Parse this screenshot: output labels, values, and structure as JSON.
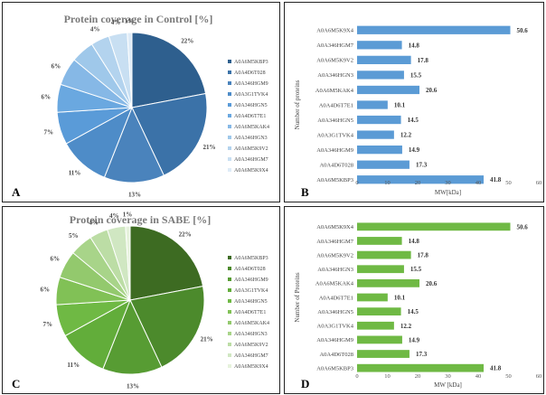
{
  "chart_data": [
    {
      "panel": "A",
      "type": "pie",
      "title": "Protein coverage in Control [%]",
      "categories": [
        "A0A6M5KBP3",
        "A0A4D6T028",
        "A0A346HGM9",
        "A0A3G1TVK4",
        "A0A346HGN5",
        "A0A4D6T7E1",
        "A0A6M5KAK4",
        "A0A346HGN3",
        "A0A6M5K9V2",
        "A0A346HGM7",
        "A0A6M5K9X4"
      ],
      "values": [
        22,
        21,
        13,
        11,
        7,
        6,
        6,
        5,
        4,
        4,
        1
      ],
      "slice_labels": [
        "22%",
        "21%",
        "13%",
        "11%",
        "7%",
        "6%",
        "6%",
        "",
        "4%",
        "4%",
        "1%"
      ],
      "colors": [
        "#2e5f8e",
        "#3b72a8",
        "#4a83bc",
        "#4e8cc8",
        "#5a9bd8",
        "#6aa8e0",
        "#86b8e6",
        "#9fc8ea",
        "#b3d3ee",
        "#c8dff2",
        "#deebf7"
      ],
      "legend": "right"
    },
    {
      "panel": "B",
      "type": "bar",
      "orientation": "horizontal",
      "categories": [
        "A0A6M5K9X4",
        "A0A346HGM7",
        "A0A6M5K9V2",
        "A0A346HGN3",
        "A0A6M5KAK4",
        "A0A4D6T7E1",
        "A0A346HGN5",
        "A0A3G1TVK4",
        "A0A346HGM9",
        "A0A4D6T028",
        "A0A6M5KBP3"
      ],
      "values": [
        50.6,
        14.8,
        17.8,
        15.5,
        20.6,
        10.1,
        14.5,
        12.2,
        14.9,
        17.3,
        41.8
      ],
      "xlabel": "MW[kDa]",
      "ylabel": "Number of proteins",
      "xlim": [
        0,
        60
      ],
      "xticks": [
        "0",
        "10",
        "20",
        "30",
        "40",
        "50",
        "60"
      ],
      "color": "#5b9bd5"
    },
    {
      "panel": "C",
      "type": "pie",
      "title": "Protein coverage in SABE [%]",
      "categories": [
        "A0A6M5KBP3",
        "A0A4D6T028",
        "A0A346HGM9",
        "A0A3G1TVK4",
        "A0A346HGN5",
        "A0A4D6T7E1",
        "A0A6M5KAK4",
        "A0A346HGN3",
        "A0A6M5K9V2",
        "A0A346HGM7",
        "A0A6M5K9X4"
      ],
      "values": [
        22,
        21,
        13,
        11,
        7,
        6,
        6,
        5,
        4,
        4,
        1
      ],
      "slice_labels": [
        "22%",
        "21%",
        "13%",
        "11%",
        "7%",
        "6%",
        "6%",
        "5%",
        "4%",
        "4%",
        "1%"
      ],
      "colors": [
        "#3d6b22",
        "#4c8a2c",
        "#579c33",
        "#62ad3a",
        "#6fb944",
        "#81c156",
        "#93c96d",
        "#a8d489",
        "#bcdda5",
        "#d0e7c2",
        "#e6f2dc"
      ],
      "legend": "right"
    },
    {
      "panel": "D",
      "type": "bar",
      "orientation": "horizontal",
      "categories": [
        "A0A6M5K9X4",
        "A0A346HGM7",
        "A0A6M5K9V2",
        "A0A346HGN3",
        "A0A6M5KAK4",
        "A0A4D6T7E1",
        "A0A346HGN5",
        "A0A3G1TVK4",
        "A0A346HGM9",
        "A0A4D6T028",
        "A0A6M5KBP3"
      ],
      "values": [
        50.6,
        14.8,
        17.8,
        15.5,
        20.6,
        10.1,
        14.5,
        12.2,
        14.9,
        17.3,
        41.8
      ],
      "xlabel": "MW [kDa]",
      "ylabel": "Number of Proteins",
      "xlim": [
        0,
        60
      ],
      "xticks": [
        "0",
        "10",
        "20",
        "30",
        "40",
        "50",
        "60"
      ],
      "color": "#6fb944"
    }
  ]
}
